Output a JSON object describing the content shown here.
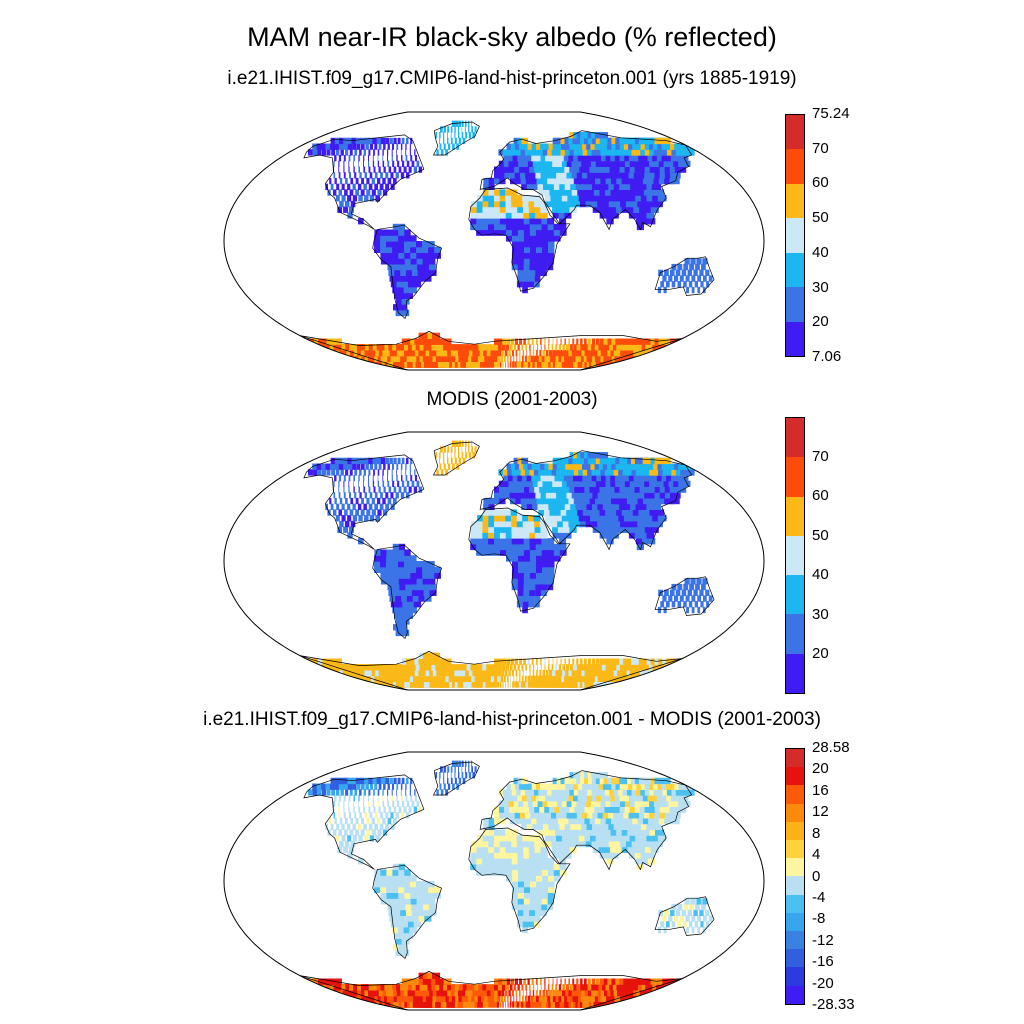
{
  "title": "MAM near-IR black-sky albedo (% reflected)",
  "panels": [
    {
      "label": "i.e21.IHIST.f09_g17.CMIP6-land-hist-princeton.001 (yrs 1885-1919)",
      "colorbar": {
        "colors": [
          "#3f1cf2",
          "#3b74e6",
          "#1cb6f0",
          "#cce8f7",
          "#fbb917",
          "#fc4b0a",
          "#d42b2b"
        ],
        "tick_labels": [
          "7.06",
          "20",
          "30",
          "40",
          "50",
          "60",
          "70",
          "75.24"
        ],
        "min": 7.06,
        "max": 75.24
      }
    },
    {
      "label": "MODIS (2001-2003)",
      "colorbar": {
        "colors": [
          "#3f1cf2",
          "#3b74e6",
          "#1cb6f0",
          "#cce8f7",
          "#fbb917",
          "#fc4b0a",
          "#d42b2b"
        ],
        "tick_labels": [
          "",
          "20",
          "30",
          "40",
          "50",
          "60",
          "70",
          ""
        ]
      }
    },
    {
      "label": "i.e21.IHIST.f09_g17.CMIP6-land-hist-princeton.001 - MODIS (2001-2003)",
      "colorbar": {
        "colors": [
          "#3f1cf2",
          "#2a3ce0",
          "#3060e0",
          "#3a82e2",
          "#38a6ec",
          "#4cc0f0",
          "#b8e0f2",
          "#fdf5a0",
          "#fed23c",
          "#fdb21a",
          "#fb8a0c",
          "#fc5a08",
          "#e8120c",
          "#d42b2b"
        ],
        "tick_labels": [
          "-28.33",
          "-20",
          "-16",
          "-12",
          "-8",
          "-4",
          "0",
          "4",
          "8",
          "12",
          "16",
          "20",
          "28.58"
        ],
        "min": -28.33,
        "max": 28.58
      }
    }
  ]
}
